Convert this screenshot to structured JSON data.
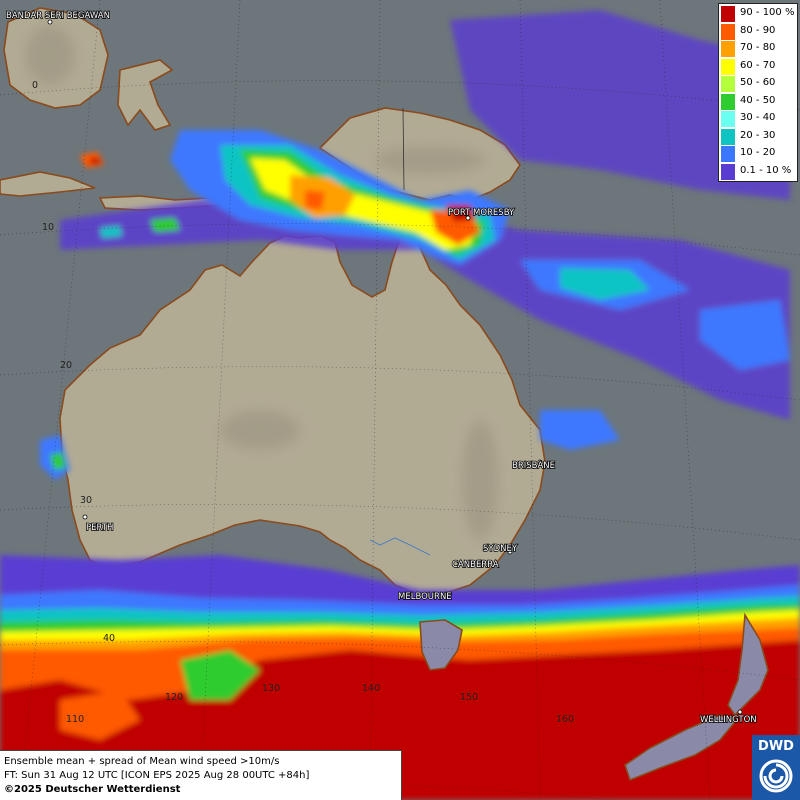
{
  "title_info": {
    "line1": "Ensemble mean + spread of Mean wind speed >10m/s",
    "line2": "FT: Sun 31 Aug 12 UTC [ICON EPS 2025 Aug 28 00UTC +84h]",
    "line3": "©2025 Deutscher Wetterdienst"
  },
  "logo": {
    "text": "DWD",
    "color": "#1c58a8"
  },
  "legend": [
    {
      "label": "90 - 100 %",
      "color": "#c00000"
    },
    {
      "label": "80 - 90",
      "color": "#ff5a00"
    },
    {
      "label": "70 - 80",
      "color": "#ffa000"
    },
    {
      "label": "60 - 70",
      "color": "#ffff00"
    },
    {
      "label": "50 - 60",
      "color": "#b4ff3c"
    },
    {
      "label": "40 - 50",
      "color": "#2ecc2e"
    },
    {
      "label": "30 - 40",
      "color": "#6afff0"
    },
    {
      "label": "20 - 30",
      "color": "#10c4c4"
    },
    {
      "label": "10 - 20",
      "color": "#3c78ff"
    },
    {
      "label": "0.1 - 10 %",
      "color": "#5a3cd2"
    }
  ],
  "cities": [
    {
      "name": "BANDAR SERI BEGAWAN"
    },
    {
      "name": "PORT MORESBY"
    },
    {
      "name": "BRISBANE"
    },
    {
      "name": "PERTH"
    },
    {
      "name": "SYDNEY"
    },
    {
      "name": "CANBERRA"
    },
    {
      "name": "MELBOURNE"
    },
    {
      "name": "WELLINGTON"
    }
  ],
  "latitude_labels": [
    "0",
    "10",
    "20",
    "30",
    "40"
  ],
  "longitude_labels": [
    "110",
    "120",
    "130",
    "140",
    "150",
    "160"
  ],
  "map_colors": {
    "ocean": "#6d767b",
    "land": "#b2ab94",
    "highland": "#9a9380",
    "coastline": "#8a4a1c"
  }
}
